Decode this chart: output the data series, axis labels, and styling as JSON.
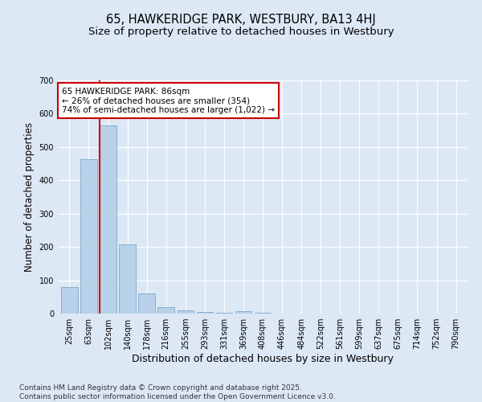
{
  "title_line1": "65, HAWKERIDGE PARK, WESTBURY, BA13 4HJ",
  "title_line2": "Size of property relative to detached houses in Westbury",
  "xlabel": "Distribution of detached houses by size in Westbury",
  "ylabel": "Number of detached properties",
  "categories": [
    "25sqm",
    "63sqm",
    "102sqm",
    "140sqm",
    "178sqm",
    "216sqm",
    "255sqm",
    "293sqm",
    "331sqm",
    "369sqm",
    "408sqm",
    "446sqm",
    "484sqm",
    "522sqm",
    "561sqm",
    "599sqm",
    "637sqm",
    "675sqm",
    "714sqm",
    "752sqm",
    "790sqm"
  ],
  "values": [
    80,
    463,
    565,
    207,
    60,
    20,
    10,
    5,
    2,
    8,
    2,
    0,
    0,
    0,
    0,
    0,
    0,
    0,
    0,
    0,
    0
  ],
  "bar_color": "#b8d0e8",
  "bar_edge_color": "#7aaac8",
  "vline_x_idx": 1.55,
  "vline_color": "#cc0000",
  "annotation_text": "65 HAWKERIDGE PARK: 86sqm\n← 26% of detached houses are smaller (354)\n74% of semi-detached houses are larger (1,022) →",
  "annotation_box_facecolor": "#ffffff",
  "annotation_box_edgecolor": "#cc0000",
  "ylim": [
    0,
    700
  ],
  "yticks": [
    0,
    100,
    200,
    300,
    400,
    500,
    600,
    700
  ],
  "bg_color": "#dde8f5",
  "plot_bg_color": "#dde8f5",
  "footer_line1": "Contains HM Land Registry data © Crown copyright and database right 2025.",
  "footer_line2": "Contains public sector information licensed under the Open Government Licence v3.0.",
  "title_fontsize": 10.5,
  "subtitle_fontsize": 9.5,
  "xlabel_fontsize": 9,
  "ylabel_fontsize": 8.5,
  "tick_fontsize": 7,
  "footer_fontsize": 6.5,
  "annotation_fontsize": 7.5
}
